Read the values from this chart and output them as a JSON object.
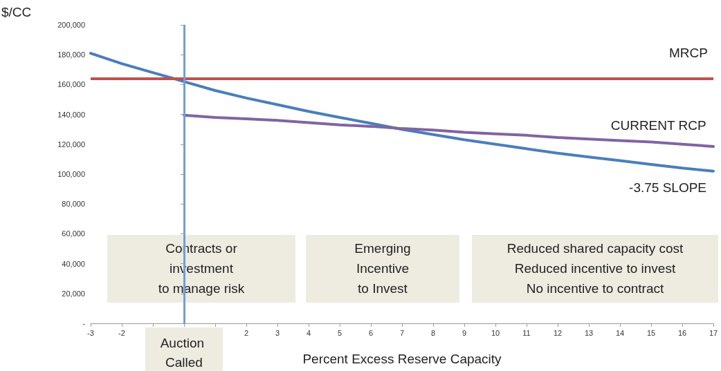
{
  "chart_data": {
    "type": "line",
    "ylabel": "$/CC",
    "xlabel": "Percent Excess Reserve Capacity",
    "xlim": [
      -3,
      17
    ],
    "xticks": [
      -3,
      -2,
      {
        "value": -1,
        "label": null
      },
      {
        "value": 0,
        "label": null
      },
      {
        "value": 1,
        "label": null
      },
      2,
      3,
      4,
      5,
      6,
      7,
      8,
      9,
      10,
      11,
      12,
      13,
      14,
      15,
      16,
      17
    ],
    "ylim": [
      0,
      200000
    ],
    "yticks": [
      {
        "value": 0,
        "label": "-"
      },
      {
        "value": 20000,
        "label": "20,000"
      },
      {
        "value": 40000,
        "label": "40,000"
      },
      {
        "value": 60000,
        "label": "60,000"
      },
      {
        "value": 80000,
        "label": "80,000"
      },
      {
        "value": 100000,
        "label": "100,000"
      },
      {
        "value": 120000,
        "label": "120,000"
      },
      {
        "value": 140000,
        "label": "140,000"
      },
      {
        "value": 160000,
        "label": "160,000"
      },
      {
        "value": 180000,
        "label": "180,000"
      },
      {
        "value": 200000,
        "label": "200,000"
      }
    ],
    "grid": false,
    "marker": "none",
    "series": [
      {
        "name": "-3.75 SLOPE",
        "color": "#4a7ebb",
        "x": [
          -3,
          -2,
          -1,
          0,
          1,
          2,
          3,
          4,
          5,
          6,
          7,
          8,
          9,
          10,
          11,
          12,
          13,
          14,
          15,
          16,
          17
        ],
        "values": [
          181000,
          174000,
          168000,
          162000,
          156000,
          151000,
          146500,
          142000,
          138000,
          134000,
          130000,
          126500,
          123000,
          120000,
          117000,
          114000,
          111500,
          109000,
          106500,
          104000,
          102000
        ]
      },
      {
        "name": "CURRENT RCP",
        "color": "#8064a2",
        "x": [
          0,
          1,
          2,
          3,
          4,
          5,
          6,
          7,
          8,
          9,
          10,
          11,
          12,
          13,
          14,
          15,
          16,
          17
        ],
        "values": [
          139500,
          138000,
          137000,
          136000,
          134500,
          133000,
          132000,
          130500,
          129500,
          128000,
          127000,
          126000,
          124500,
          123500,
          122500,
          121500,
          120000,
          118500
        ]
      }
    ],
    "ref_lines": [
      {
        "axis": "y",
        "value": 164000,
        "label": "MRCP",
        "color": "#c0504d"
      },
      {
        "axis": "x",
        "value": 0,
        "label": "Auction Called",
        "color": "#6f9fd8"
      }
    ],
    "annotations": [
      "Contracts or\ninvestment\nto manage risk",
      "Emerging\nIncentive\nto Invest",
      "Reduced shared capacity cost\nReduced incentive to invest\nNo incentive to contract"
    ]
  }
}
